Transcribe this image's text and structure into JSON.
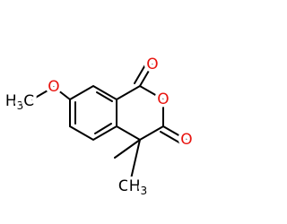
{
  "atoms": [
    {
      "label": "O"
    },
    {
      "label": "O"
    },
    {
      "label": "O"
    },
    {
      "label": "O"
    }
  ],
  "methyls": [
    {
      "parts": [
        "H",
        "3",
        "C"
      ]
    },
    {
      "parts": [
        "C",
        "H",
        "3"
      ]
    }
  ]
}
